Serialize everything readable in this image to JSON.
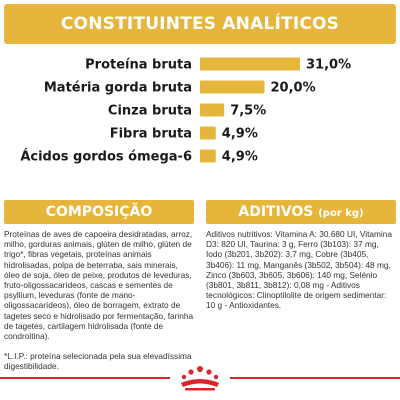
{
  "title": "CONSTITUINTES ANALÍTICOS",
  "chart_data": {
    "type": "bar",
    "orientation": "horizontal",
    "categories": [
      "Proteína bruta",
      "Matéria gorda bruta",
      "Cinza bruta",
      "Fibra bruta",
      "Ácidos gordos ómega-6"
    ],
    "values": [
      31.0,
      20.0,
      7.5,
      4.9,
      4.9
    ],
    "value_labels": [
      "31,0%",
      "20,0%",
      "7,5%",
      "4,9%",
      "4,9%"
    ],
    "xlim": [
      0,
      31.0
    ],
    "bar_color": "#e6b53c",
    "grid": false
  },
  "composition": {
    "heading": "COMPOSIÇÃO",
    "text": "Proteínas de aves de capoeira desidratadas, arroz, milho, gorduras animais, glúten de milho, glúten de trigo*, fibras vegetais, proteínas animais hidrolisadas, polpa de beterraba, sais minerais, óleo de soja, óleo de peixe, produtos de leveduras, fruto-oligossacarídeos, cascas e sementes de psyllium, leveduras (fonte de mano-oligossacarídeos), óleo de borragem, extrato de tagetes seco e hidrolisado por fermentação, farinha de tagetes, cartilagem hidrolisada (fonte de condroitina).",
    "note": "*L.I.P.: proteína selecionada pela sua elevadíssima digestibilidade."
  },
  "additives": {
    "heading": "ADITIVOS",
    "heading_unit": "(por kg)",
    "text": "Aditivos nutritivos: Vitamina A: 30.680 UI, Vitamina D3: 820 UI, Taurina: 3 g, Ferro (3b103): 37 mg, Iodo (3b201, 3b202): 3,7 mg, Cobre (3b405, 3b406): 11 mg, Manganês (3b502, 3b504): 48 mg, Zinco (3b603, 3b605, 3b606): 140 mg, Selénio (3b801, 3b811, 3b812): 0,08 mg - Aditivos tecnológicos: Clinoptilolite de origem sedimentar: 10 g - Antioxidantes."
  },
  "colors": {
    "accent": "#e6b53c",
    "footer_line": "#d8262f"
  },
  "footer": {
    "logo_icon": "royal-canin-crown-icon"
  }
}
